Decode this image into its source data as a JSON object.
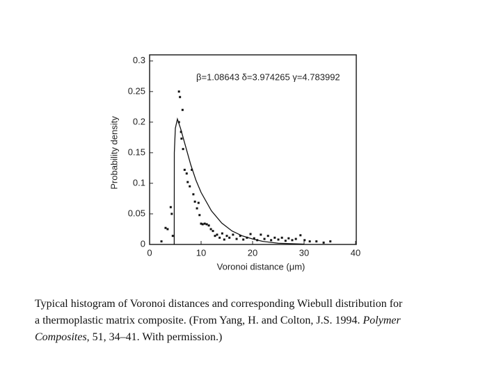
{
  "chart_data": {
    "type": "scatter",
    "ylabel": "Probability density",
    "xlabel": "Voronoi distance (μm)",
    "annotation": "β=1.08643  δ=3.974265  γ=4.783992",
    "xlim": [
      0,
      40
    ],
    "ylim": [
      0,
      0.31
    ],
    "xticks": [
      0,
      10,
      20,
      30,
      40
    ],
    "yticks": [
      0,
      0.05,
      0.1,
      0.15,
      0.2,
      0.25,
      0.3
    ],
    "color": "#111111",
    "series": [
      {
        "kind": "points",
        "x": [
          2.3,
          3.1,
          3.5,
          4.1,
          4.3,
          4.5,
          5.7,
          5.9,
          6.4,
          5.7,
          6.1,
          6.2,
          6.5,
          6.8,
          7.2,
          7.4,
          7.8,
          8.2,
          8.5,
          8.8,
          9.2,
          9.5,
          9.7,
          10,
          10.3,
          10.7,
          11.1,
          11.5,
          11.9,
          12.3,
          12.7,
          13.1,
          13.6,
          14.1,
          14.5,
          15,
          15.5,
          16.2,
          16.9,
          17.6,
          18.2,
          18.9,
          19.6,
          20.3,
          20.9,
          21.6,
          22.3,
          23,
          23.6,
          24.3,
          25,
          25.7,
          26.4,
          27,
          27.7,
          28.4,
          29.3,
          30.1,
          31.1,
          32.4,
          33.8,
          35.1
        ],
        "values": [
          0.005,
          0.027,
          0.025,
          0.061,
          0.05,
          0.014,
          0.25,
          0.241,
          0.22,
          0.2,
          0.184,
          0.173,
          0.156,
          0.122,
          0.116,
          0.102,
          0.095,
          0.122,
          0.082,
          0.07,
          0.059,
          0.068,
          0.048,
          0.034,
          0.033,
          0.034,
          0.033,
          0.031,
          0.025,
          0.022,
          0.014,
          0.016,
          0.011,
          0.018,
          0.008,
          0.014,
          0.011,
          0.016,
          0.009,
          0.014,
          0.008,
          0.011,
          0.017,
          0.01,
          0.007,
          0.016,
          0.009,
          0.014,
          0.007,
          0.011,
          0.008,
          0.011,
          0.006,
          0.01,
          0.007,
          0.009,
          0.015,
          0.007,
          0.005,
          0.005,
          0.003,
          0.005
        ]
      },
      {
        "kind": "curve",
        "x": [
          4.78,
          4.8,
          5.0,
          5.4,
          6,
          7,
          8,
          9,
          10,
          12,
          14,
          16,
          18,
          20,
          22,
          25,
          30
        ],
        "values": [
          0,
          0.15,
          0.19,
          0.205,
          0.19,
          0.16,
          0.13,
          0.105,
          0.085,
          0.055,
          0.035,
          0.022,
          0.014,
          0.009,
          0.005,
          0.002,
          0.0005
        ]
      }
    ]
  },
  "caption": [
    [
      {
        "text": "Typical histogram of Voronoi distances and corresponding Wiebull distribution for",
        "italic": false
      }
    ],
    [
      {
        "text": "a thermoplastic matrix composite. (From Yang, H. and Colton, J.S. 1994. ",
        "italic": false
      },
      {
        "text": "Polymer",
        "italic": true
      }
    ],
    [
      {
        "text": "Composites",
        "italic": true
      },
      {
        "text": ", 51, 34–41. With permission.)",
        "italic": false
      }
    ]
  ]
}
